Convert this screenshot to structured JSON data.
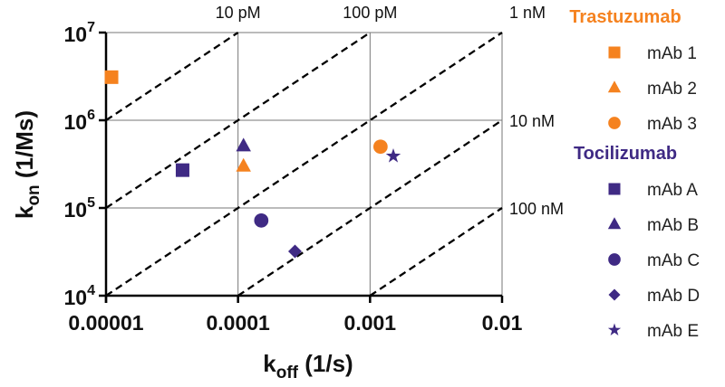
{
  "chart_data": {
    "type": "scatter",
    "xscale": "log",
    "yscale": "log",
    "xlim": [
      1e-05,
      0.01
    ],
    "ylim": [
      10000,
      10000000
    ],
    "xlabel": {
      "main": "k",
      "sub": "off",
      "units": " (1/s)"
    },
    "ylabel": {
      "main": "k",
      "sub": "on",
      "units": " (1/Ms)"
    },
    "xticks": [
      {
        "value": 1e-05,
        "label": "0.00001"
      },
      {
        "value": 0.0001,
        "label": "0.0001"
      },
      {
        "value": 0.001,
        "label": "0.001"
      },
      {
        "value": 0.01,
        "label": "0.01"
      }
    ],
    "yticks": [
      {
        "value": 10000,
        "base": "10",
        "exp": "4"
      },
      {
        "value": 100000,
        "base": "10",
        "exp": "5"
      },
      {
        "value": 1000000,
        "base": "10",
        "exp": "6"
      },
      {
        "value": 10000000,
        "base": "10",
        "exp": "7"
      }
    ],
    "grid": true,
    "iso_kd_lines": [
      {
        "kd": 1e-11,
        "label": "10 pM"
      },
      {
        "kd": 1e-10,
        "label": "100 pM"
      },
      {
        "kd": 1e-09,
        "label": "1 nM"
      },
      {
        "kd": 1e-08,
        "label": "10 nM"
      },
      {
        "kd": 1e-07,
        "label": "100 nM"
      }
    ],
    "legend_position": "right",
    "groups": [
      {
        "name": "Trastuzumab",
        "color": "#F5821F",
        "series": [
          {
            "name": "mAb 1",
            "marker": "square",
            "x": 1.1e-05,
            "y": 3100000
          },
          {
            "name": "mAb 2",
            "marker": "triangle",
            "x": 0.00011,
            "y": 300000
          },
          {
            "name": "mAb 3",
            "marker": "circle",
            "x": 0.0012,
            "y": 500000
          }
        ]
      },
      {
        "name": "Tocilizumab",
        "color": "#3F2A84",
        "series": [
          {
            "name": "mAb A",
            "marker": "square",
            "x": 3.8e-05,
            "y": 270000
          },
          {
            "name": "mAb B",
            "marker": "triangle",
            "x": 0.00011,
            "y": 510000
          },
          {
            "name": "mAb C",
            "marker": "circle",
            "x": 0.00015,
            "y": 72000
          },
          {
            "name": "mAb D",
            "marker": "diamond",
            "x": 0.00027,
            "y": 32000
          },
          {
            "name": "mAb E",
            "marker": "star",
            "x": 0.0015,
            "y": 390000
          }
        ]
      }
    ]
  }
}
